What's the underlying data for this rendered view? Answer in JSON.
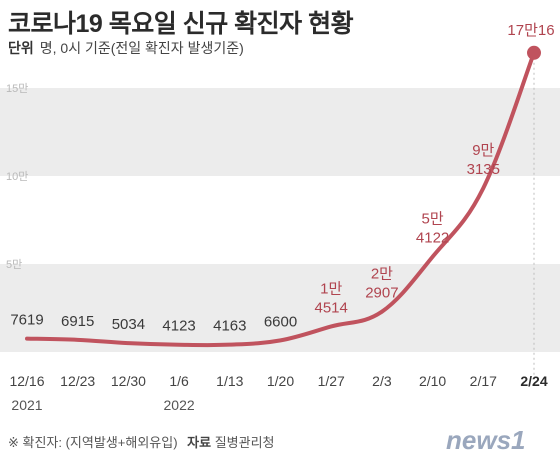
{
  "title": "코로나19 목요일 신규 확진자 현황",
  "unit_label": "단위",
  "unit_text": "명, 0시 기준(전일 확진자 발생기준)",
  "footnote": "※ 확진자: (지역발생+해외유입)",
  "source_label": "자료",
  "source_text": "질병관리청",
  "logo_text": "news1",
  "colors": {
    "line": "#c0535e",
    "band": "#ececec",
    "dot": "#c0535e",
    "highlight_text": "#b0444f"
  },
  "chart_data": {
    "type": "line",
    "title": "코로나19 목요일 신규 확진자 현황",
    "x": [
      "12/16",
      "12/23",
      "12/30",
      "1/6",
      "1/13",
      "1/20",
      "1/27",
      "2/3",
      "2/10",
      "2/17",
      "2/24"
    ],
    "year_labels": [
      {
        "index": 0,
        "text": "2021"
      },
      {
        "index": 3,
        "text": "2022"
      }
    ],
    "series": [
      {
        "values": [
          7619,
          6915,
          5034,
          4123,
          4163,
          6600,
          14514,
          22907,
          54122,
          93135,
          170016
        ]
      }
    ],
    "data_labels": [
      [
        "7619"
      ],
      [
        "6915"
      ],
      [
        "5034"
      ],
      [
        "4123"
      ],
      [
        "4163"
      ],
      [
        "6600"
      ],
      [
        "1만",
        "4514"
      ],
      [
        "2만",
        "2907"
      ],
      [
        "5만",
        "4122"
      ],
      [
        "9만",
        "3135"
      ],
      [
        "17만16"
      ]
    ],
    "y_gridlines": [
      {
        "value": 50000,
        "label": "5만"
      },
      {
        "value": 100000,
        "label": "10만"
      },
      {
        "value": 150000,
        "label": "15만"
      }
    ],
    "ylim": [
      0,
      175000
    ],
    "grid": true
  }
}
